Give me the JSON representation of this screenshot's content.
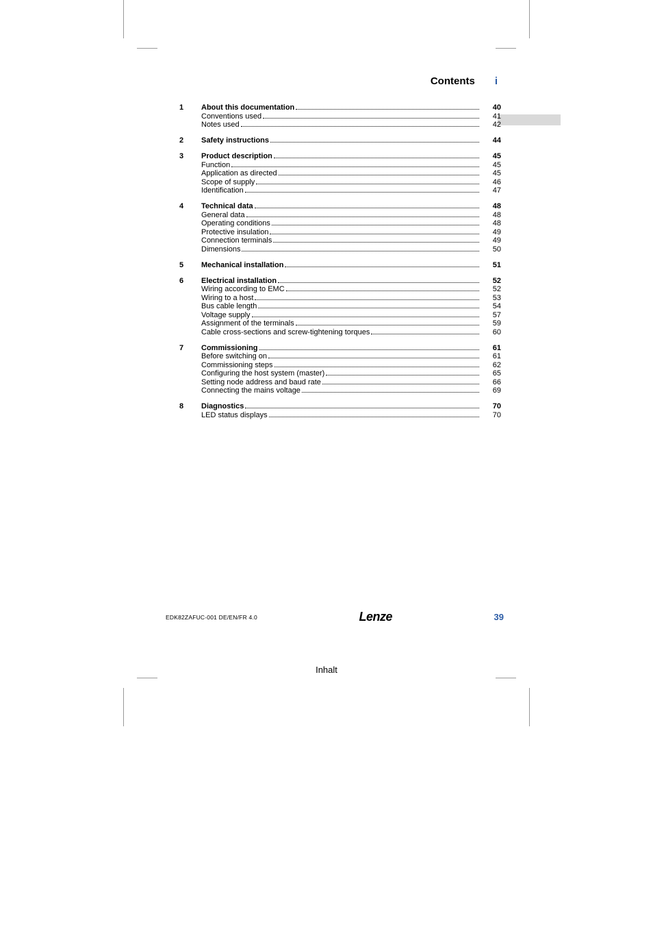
{
  "header": {
    "title": "Contents",
    "marker": "i"
  },
  "footer": {
    "doc_id": "EDK82ZAFUC-001  DE/EN/FR  4.0",
    "brand": "Lenze",
    "page_num": "39"
  },
  "subtitle": "Inhalt",
  "colors": {
    "accent": "#2b5ca6",
    "grey_bar": "#d9d9d9",
    "text": "#000000",
    "bg": "#ffffff"
  },
  "typography": {
    "body_pt": 11,
    "header_pt": 15,
    "footer_id_pt": 8.5,
    "brand_pt": 18,
    "pagenum_pt": 13,
    "subtitle_pt": 13
  },
  "toc": [
    {
      "num": "1",
      "rows": [
        {
          "label": "About this documentation",
          "page": "40",
          "bold": true
        },
        {
          "label": "Conventions used",
          "page": "41",
          "bold": false
        },
        {
          "label": "Notes used",
          "page": "42",
          "bold": false
        }
      ]
    },
    {
      "num": "2",
      "rows": [
        {
          "label": "Safety instructions",
          "page": "44",
          "bold": true
        }
      ]
    },
    {
      "num": "3",
      "rows": [
        {
          "label": "Product description",
          "page": "45",
          "bold": true
        },
        {
          "label": "Function",
          "page": "45",
          "bold": false
        },
        {
          "label": "Application as directed",
          "page": "45",
          "bold": false
        },
        {
          "label": "Scope of supply",
          "page": "46",
          "bold": false
        },
        {
          "label": "Identification",
          "page": "47",
          "bold": false
        }
      ]
    },
    {
      "num": "4",
      "rows": [
        {
          "label": "Technical data",
          "page": "48",
          "bold": true
        },
        {
          "label": "General data",
          "page": "48",
          "bold": false
        },
        {
          "label": "Operating conditions",
          "page": "48",
          "bold": false
        },
        {
          "label": "Protective insulation",
          "page": "49",
          "bold": false
        },
        {
          "label": "Connection terminals",
          "page": "49",
          "bold": false
        },
        {
          "label": "Dimensions",
          "page": "50",
          "bold": false
        }
      ]
    },
    {
      "num": "5",
      "rows": [
        {
          "label": "Mechanical installation",
          "page": "51",
          "bold": true
        }
      ]
    },
    {
      "num": "6",
      "rows": [
        {
          "label": "Electrical installation",
          "page": "52",
          "bold": true
        },
        {
          "label": "Wiring according to EMC",
          "page": "52",
          "bold": false
        },
        {
          "label": "Wiring to a host",
          "page": "53",
          "bold": false
        },
        {
          "label": "Bus cable length",
          "page": "54",
          "bold": false
        },
        {
          "label": "Voltage supply",
          "page": "57",
          "bold": false
        },
        {
          "label": "Assignment of the terminals",
          "page": "59",
          "bold": false
        },
        {
          "label": "Cable cross-sections and screw-tightening torques",
          "page": "60",
          "bold": false
        }
      ]
    },
    {
      "num": "7",
      "rows": [
        {
          "label": "Commissioning",
          "page": "61",
          "bold": true
        },
        {
          "label": "Before switching on",
          "page": "61",
          "bold": false
        },
        {
          "label": "Commissioning steps",
          "page": "62",
          "bold": false
        },
        {
          "label": "Configuring the host system (master)",
          "page": "65",
          "bold": false
        },
        {
          "label": "Setting node address and baud rate",
          "page": "66",
          "bold": false
        },
        {
          "label": "Connecting the mains voltage",
          "page": "69",
          "bold": false
        }
      ]
    },
    {
      "num": "8",
      "rows": [
        {
          "label": "Diagnostics",
          "page": "70",
          "bold": true
        },
        {
          "label": "LED status displays",
          "page": "70",
          "bold": false
        }
      ]
    }
  ]
}
